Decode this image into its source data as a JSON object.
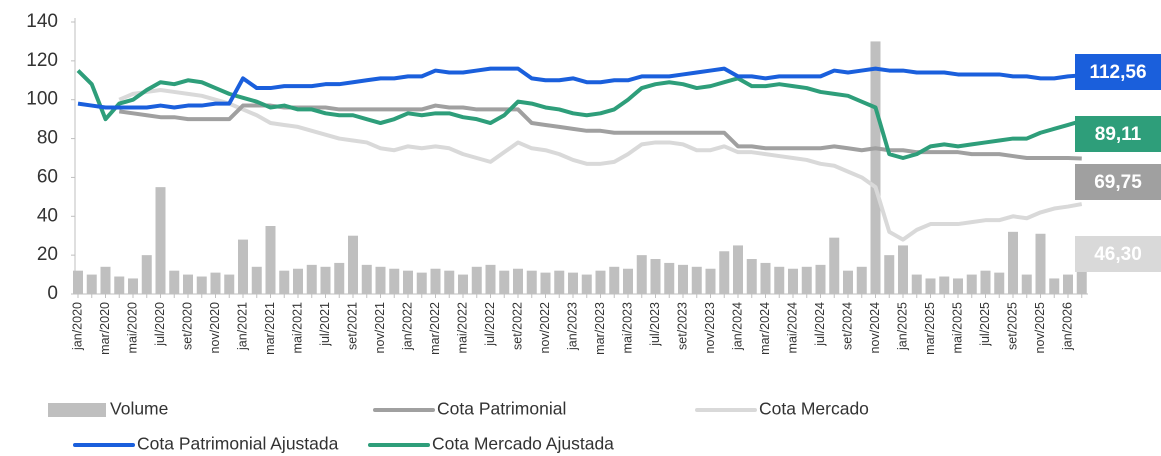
{
  "chart_data": {
    "type": "line",
    "categories": [
      "jan/2020",
      null,
      "mar/2020",
      null,
      "mai/2020",
      null,
      "jul/2020",
      null,
      "set/2020",
      null,
      "nov/2020",
      null,
      "jan/2021",
      null,
      "mar/2021",
      null,
      "mai/2021",
      null,
      "jul/2021",
      null,
      "set/2021",
      null,
      "nov/2021",
      null,
      "jan/2022",
      null,
      "mar/2022",
      null,
      "mai/2022",
      null,
      "jul/2022",
      null,
      "set/2022",
      null,
      "nov/2022",
      null,
      "jan/2023",
      null,
      "mar/2023",
      null,
      "mai/2023",
      null,
      "jul/2023",
      null,
      "set/2023",
      null,
      "nov/2023",
      null,
      "jan/2024",
      null,
      "mar/2024",
      null,
      "mai/2024",
      null,
      "jul/2024",
      null,
      "set/2024",
      null,
      "nov/2024",
      null,
      "jan/2025",
      null,
      "mar/2025",
      null,
      "mai/2025",
      null,
      "jul/2025",
      null,
      "set/2025",
      null,
      "nov/2025",
      null,
      "jan/2026",
      null
    ],
    "ylim": [
      0,
      140
    ],
    "yticks": [
      0,
      20,
      40,
      60,
      80,
      100,
      120,
      140
    ],
    "series": [
      {
        "name": "Volume",
        "type": "bar",
        "color": "#bfbfbf",
        "values": [
          12,
          10,
          14,
          9,
          8,
          20,
          55,
          12,
          10,
          9,
          11,
          10,
          28,
          14,
          35,
          12,
          13,
          15,
          14,
          16,
          30,
          15,
          14,
          13,
          12,
          11,
          13,
          12,
          10,
          14,
          15,
          12,
          13,
          12,
          11,
          12,
          11,
          10,
          12,
          14,
          13,
          20,
          18,
          16,
          15,
          14,
          13,
          22,
          25,
          18,
          16,
          14,
          13,
          14,
          15,
          29,
          12,
          14,
          130,
          20,
          25,
          10,
          8,
          9,
          8,
          10,
          12,
          11,
          32,
          10,
          31,
          8,
          10,
          14
        ]
      },
      {
        "name": "Cota Patrimonial",
        "type": "line",
        "color": "#a0a0a0",
        "values": [
          null,
          null,
          null,
          94,
          93,
          92,
          91,
          91,
          90,
          90,
          90,
          90,
          97,
          97,
          97,
          96,
          96,
          96,
          96,
          95,
          95,
          95,
          95,
          95,
          95,
          95,
          97,
          96,
          96,
          95,
          95,
          95,
          95,
          88,
          87,
          86,
          85,
          84,
          84,
          83,
          83,
          83,
          83,
          83,
          83,
          83,
          83,
          83,
          76,
          76,
          75,
          75,
          75,
          75,
          75,
          76,
          75,
          74,
          75,
          74,
          74,
          73,
          73,
          73,
          73,
          72,
          72,
          72,
          71,
          70,
          70,
          70,
          70,
          69.75
        ],
        "value_labels": [
          null,
          null,
          null,
          null,
          null,
          null,
          null,
          null,
          null,
          null,
          null,
          null,
          null,
          null,
          null,
          null,
          null,
          null,
          null,
          null,
          null,
          null,
          null,
          null,
          null,
          null,
          null,
          null,
          null,
          null,
          null,
          null,
          null,
          null,
          null,
          null,
          null,
          null,
          null,
          null,
          null,
          null,
          null,
          null,
          null,
          null,
          null,
          null,
          null,
          null,
          null,
          null,
          null,
          null,
          null,
          null,
          null,
          null,
          null,
          null,
          null,
          null,
          null,
          null,
          null,
          null,
          null,
          null,
          null,
          null,
          null,
          null,
          null,
          "69,75"
        ]
      },
      {
        "name": "Cota Mercado",
        "type": "line",
        "color": "#d9d9d9",
        "values": [
          null,
          null,
          null,
          100,
          103,
          104,
          105,
          104,
          103,
          102,
          100,
          98,
          95,
          92,
          88,
          87,
          86,
          84,
          82,
          80,
          79,
          78,
          75,
          74,
          76,
          75,
          76,
          75,
          72,
          70,
          68,
          73,
          78,
          75,
          74,
          72,
          69,
          67,
          67,
          68,
          72,
          77,
          78,
          78,
          77,
          74,
          74,
          76,
          73,
          73,
          72,
          71,
          70,
          69,
          67,
          66,
          63,
          60,
          55,
          32,
          28,
          33,
          36,
          36,
          36,
          37,
          38,
          38,
          40,
          39,
          42,
          44,
          45,
          46.3
        ],
        "value_labels": [
          null,
          null,
          null,
          null,
          null,
          null,
          null,
          null,
          null,
          null,
          null,
          null,
          null,
          null,
          null,
          null,
          null,
          null,
          null,
          null,
          null,
          null,
          null,
          null,
          null,
          null,
          null,
          null,
          null,
          null,
          null,
          null,
          null,
          null,
          null,
          null,
          null,
          null,
          null,
          null,
          null,
          null,
          null,
          null,
          null,
          null,
          null,
          null,
          null,
          null,
          null,
          null,
          null,
          null,
          null,
          null,
          null,
          null,
          null,
          null,
          null,
          null,
          null,
          null,
          null,
          null,
          null,
          null,
          null,
          null,
          null,
          null,
          null,
          "46,30"
        ]
      },
      {
        "name": "Cota Patrimonial Ajustada",
        "type": "line",
        "color": "#1a5fdc",
        "values": [
          98,
          97,
          96,
          96,
          96,
          96,
          97,
          96,
          97,
          97,
          98,
          98,
          111,
          106,
          106,
          107,
          107,
          107,
          108,
          108,
          109,
          110,
          111,
          111,
          112,
          112,
          115,
          114,
          114,
          115,
          116,
          116,
          116,
          111,
          110,
          110,
          111,
          109,
          109,
          110,
          110,
          112,
          112,
          112,
          113,
          114,
          115,
          116,
          112,
          112,
          111,
          112,
          112,
          112,
          112,
          115,
          114,
          115,
          116,
          115,
          115,
          114,
          114,
          114,
          113,
          113,
          113,
          113,
          112,
          112,
          111,
          111,
          112,
          112.56
        ],
        "value_labels": [
          null,
          null,
          null,
          null,
          null,
          null,
          null,
          null,
          null,
          null,
          null,
          null,
          null,
          null,
          null,
          null,
          null,
          null,
          null,
          null,
          null,
          null,
          null,
          null,
          null,
          null,
          null,
          null,
          null,
          null,
          null,
          null,
          null,
          null,
          null,
          null,
          null,
          null,
          null,
          null,
          null,
          null,
          null,
          null,
          null,
          null,
          null,
          null,
          null,
          null,
          null,
          null,
          null,
          null,
          null,
          null,
          null,
          null,
          null,
          null,
          null,
          null,
          null,
          null,
          null,
          null,
          null,
          null,
          null,
          null,
          null,
          null,
          null,
          "112,56"
        ]
      },
      {
        "name": "Cota Mercado Ajustada",
        "type": "line",
        "color": "#2e9e7a",
        "values": [
          115,
          108,
          90,
          98,
          100,
          105,
          109,
          108,
          110,
          109,
          106,
          103,
          101,
          99,
          96,
          97,
          95,
          95,
          93,
          92,
          92,
          90,
          88,
          90,
          93,
          92,
          93,
          93,
          91,
          90,
          88,
          92,
          99,
          98,
          96,
          95,
          93,
          92,
          93,
          95,
          100,
          106,
          108,
          109,
          108,
          106,
          107,
          109,
          111,
          107,
          107,
          108,
          107,
          106,
          104,
          103,
          102,
          99,
          96,
          72,
          70,
          72,
          76,
          77,
          76,
          77,
          78,
          79,
          80,
          80,
          83,
          85,
          87,
          89.11
        ],
        "value_labels": [
          null,
          null,
          null,
          null,
          null,
          null,
          null,
          null,
          null,
          null,
          null,
          null,
          null,
          null,
          null,
          null,
          null,
          null,
          null,
          null,
          null,
          null,
          null,
          null,
          null,
          null,
          null,
          null,
          null,
          null,
          null,
          null,
          null,
          null,
          null,
          null,
          null,
          null,
          null,
          null,
          null,
          null,
          null,
          null,
          null,
          null,
          null,
          null,
          null,
          null,
          null,
          null,
          null,
          null,
          null,
          null,
          null,
          null,
          null,
          null,
          null,
          null,
          null,
          null,
          null,
          null,
          null,
          null,
          null,
          null,
          null,
          null,
          null,
          "89,11"
        ]
      }
    ]
  }
}
